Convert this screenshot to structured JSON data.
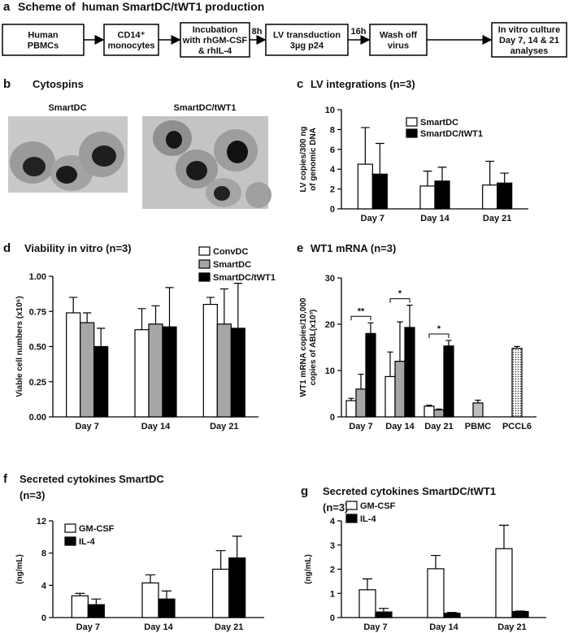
{
  "scheme": {
    "panel": "a",
    "title": "Scheme of  human SmartDC/tWT1 production",
    "boxes": [
      [
        "Human",
        "PBMCs"
      ],
      [
        "CD14⁺",
        "monocytes"
      ],
      [
        "Incubation",
        "with rhGM-CSF",
        "& rhIL-4"
      ],
      [
        "LV transduction",
        "3µg p24"
      ],
      [
        "Wash off",
        "virus"
      ],
      [
        "In vitro culture",
        "Day 7, 14 & 21",
        "analyses"
      ]
    ],
    "arrow_labels": [
      "8h",
      "16h"
    ]
  },
  "cytospins": {
    "panel": "b",
    "title": "Cytospins",
    "labels": [
      "SmartDC",
      "SmartDC/tWT1"
    ]
  },
  "chart_data": [
    {
      "type": "bar",
      "panel": "c",
      "title": [
        "LV integrations (n=3)"
      ],
      "ylabel": [
        "LV copies/300 ng",
        "of genomic DNA"
      ],
      "categories": [
        "Day 7",
        "Day 14",
        "Day 21"
      ],
      "ylim": [
        0,
        10
      ],
      "yticks": [
        0,
        2,
        4,
        6,
        8,
        10
      ],
      "series": [
        {
          "name": "SmartDC",
          "color": "#ffffff",
          "values": [
            4.5,
            2.3,
            2.4
          ],
          "errors": [
            3.7,
            1.5,
            2.4
          ]
        },
        {
          "name": "SmartDC/tWT1",
          "color": "#000000",
          "values": [
            3.5,
            2.8,
            2.6
          ],
          "errors": [
            3.1,
            1.4,
            1.0
          ]
        }
      ]
    },
    {
      "type": "bar",
      "panel": "d",
      "title": [
        "Viability in vitro (n=3)"
      ],
      "ylabel": [
        "Viable cell numbers (x10⁶)"
      ],
      "categories": [
        "Day 7",
        "Day 14",
        "Day 21"
      ],
      "ylim": [
        0,
        1
      ],
      "yticks": [
        {
          "value": 0,
          "label": "0.00"
        },
        {
          "value": 0.25,
          "label": "0.25"
        },
        {
          "value": 0.5,
          "label": "0.50"
        },
        {
          "value": 0.75,
          "label": "0.75"
        },
        {
          "value": 1,
          "label": "1.00"
        }
      ],
      "series": [
        {
          "name": "ConvDC",
          "color": "#ffffff",
          "values": [
            0.74,
            0.62,
            0.8
          ],
          "errors": [
            0.11,
            0.15,
            0.05
          ]
        },
        {
          "name": "SmartDC",
          "color": "#a6a6a6",
          "values": [
            0.67,
            0.66,
            0.66
          ],
          "errors": [
            0.07,
            0.13,
            0.25
          ]
        },
        {
          "name": "SmartDC/tWT1",
          "color": "#000000",
          "values": [
            0.5,
            0.64,
            0.63
          ],
          "errors": [
            0.13,
            0.28,
            0.32
          ]
        }
      ]
    },
    {
      "type": "bar",
      "panel": "e",
      "title": [
        "WT1 mRNA (n=3)"
      ],
      "ylabel": [
        "WT1 mRNA copies/10,000",
        "copies of ABL(x10³)"
      ],
      "categories": [
        "Day 7",
        "Day 14",
        "Day 21",
        "PBMC",
        "PCCL6"
      ],
      "ylim": [
        0,
        30
      ],
      "yticks": [
        0,
        10,
        20,
        30
      ],
      "significance": [
        "**",
        "*",
        "*",
        null,
        null
      ],
      "series": [
        {
          "color": "#ffffff",
          "values": [
            3.5,
            8.7,
            2.3,
            null,
            null
          ],
          "errors": [
            0.5,
            5.3,
            0.2,
            null,
            null
          ]
        },
        {
          "color": "#a6a6a6",
          "values": [
            6,
            12,
            1.5,
            null,
            null
          ],
          "errors": [
            3.2,
            8.5,
            0.2,
            null,
            null
          ]
        },
        {
          "color": "#000000",
          "values": [
            18,
            19.3,
            15.3,
            null,
            null
          ],
          "errors": [
            2.3,
            4.8,
            1.2,
            null,
            null
          ]
        },
        {
          "color": "#bfbfbf",
          "values": [
            null,
            null,
            null,
            3,
            null
          ],
          "errors": [
            null,
            null,
            null,
            0.6,
            null
          ]
        },
        {
          "color": "#ffffff",
          "pattern": "dots",
          "values": [
            null,
            null,
            null,
            null,
            14.8
          ],
          "errors": [
            null,
            null,
            null,
            null,
            0.4
          ]
        }
      ]
    },
    {
      "type": "bar",
      "panel": "f",
      "title": [
        "Secreted cytokines SmartDC",
        "(n=3)"
      ],
      "ylabel": [
        "(ng/mL)"
      ],
      "categories": [
        "Day 7",
        "Day 14",
        "Day 21"
      ],
      "ylim": [
        0,
        12
      ],
      "yticks": [
        0,
        4,
        8,
        12
      ],
      "series": [
        {
          "name": "GM-CSF",
          "color": "#ffffff",
          "values": [
            2.7,
            4.3,
            6.0
          ],
          "errors": [
            0.3,
            1.0,
            2.3
          ]
        },
        {
          "name": "IL-4",
          "color": "#000000",
          "values": [
            1.6,
            2.3,
            7.4
          ],
          "errors": [
            0.7,
            1.0,
            2.7
          ]
        }
      ]
    },
    {
      "type": "bar",
      "panel": "g",
      "title": [
        "Secreted cytokines SmartDC/tWT1",
        "(n=3)"
      ],
      "ylabel": [
        "(ng/mL)"
      ],
      "categories": [
        "Day 7",
        "Day 14",
        "Day 21"
      ],
      "ylim": [
        0,
        4
      ],
      "yticks": [
        0,
        1,
        2,
        3,
        4
      ],
      "series": [
        {
          "name": "GM-CSF",
          "color": "#ffffff",
          "values": [
            1.15,
            2.02,
            2.85
          ],
          "errors": [
            0.45,
            0.55,
            0.97
          ]
        },
        {
          "name": "IL-4",
          "color": "#000000",
          "values": [
            0.23,
            0.18,
            0.25
          ],
          "errors": [
            0.15,
            0.03,
            0.02
          ]
        }
      ]
    }
  ]
}
